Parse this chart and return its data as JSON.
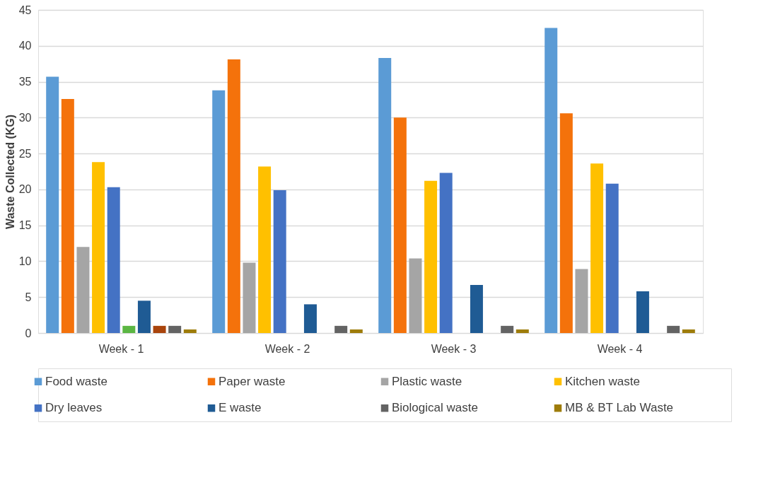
{
  "chart_data": {
    "type": "bar",
    "ylabel": "Waste Collected (KG)",
    "categories": [
      "Week - 1",
      "Week - 2",
      "Week - 3",
      "Week - 4"
    ],
    "series": [
      {
        "name": "Food waste",
        "color": "#5b9bd5",
        "values": [
          35.7,
          33.8,
          38.3,
          42.5
        ]
      },
      {
        "name": "Paper waste",
        "color": "#f4720b",
        "values": [
          32.6,
          38.1,
          30.0,
          30.6
        ]
      },
      {
        "name": "Plastic waste",
        "color": "#a5a5a5",
        "values": [
          12.0,
          9.8,
          10.4,
          8.9
        ]
      },
      {
        "name": "Kitchen waste",
        "color": "#ffc000",
        "values": [
          23.8,
          23.2,
          21.2,
          23.6
        ]
      },
      {
        "name": "Dry leaves",
        "color": "#4472c4",
        "values": [
          20.3,
          19.9,
          22.3,
          20.8
        ]
      },
      {
        "color": "#5bb643",
        "values": [
          1.0,
          null,
          null,
          null
        ]
      },
      {
        "name": "E waste",
        "color": "#1f5b94",
        "values": [
          4.5,
          4.0,
          6.7,
          5.8
        ]
      },
      {
        "color": "#a9440c",
        "values": [
          1.0,
          null,
          null,
          null
        ]
      },
      {
        "name": "Biological waste",
        "color": "#636363",
        "values": [
          1.0,
          1.0,
          1.0,
          1.0
        ]
      },
      {
        "name": "MB & BT Lab Waste",
        "color": "#9e7c0a",
        "values": [
          0.5,
          0.5,
          0.5,
          0.5
        ]
      }
    ],
    "ylim": [
      0,
      45
    ],
    "yticks": [
      0,
      5,
      10,
      15,
      20,
      25,
      30,
      35,
      40,
      45
    ],
    "grid": "y",
    "legend": "bottom"
  }
}
